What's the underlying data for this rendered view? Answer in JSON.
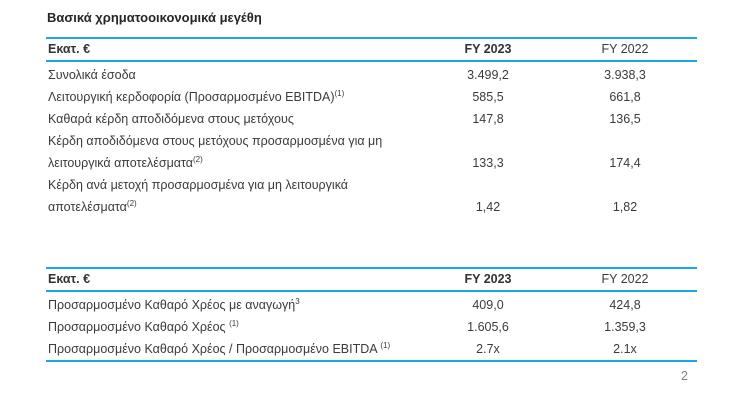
{
  "title": "Βασικά χρηματοοικονομικά μεγέθη",
  "page_number": "2",
  "colors": {
    "accent_line": "#1BA8E2",
    "text": "#3B3B3B",
    "page_number": "#808080",
    "background": "#FFFFFF"
  },
  "tables": [
    {
      "name": "key-financial-figures",
      "headers": [
        "Εκατ. €",
        "FY 2023",
        "FY 2022"
      ],
      "rows": [
        {
          "label_lines": [
            "Συνολικά έσοδα"
          ],
          "superscript": "",
          "fy2023": "3.499,2",
          "fy2022": "3.938,3"
        },
        {
          "label_lines": [
            "Λειτουργική κερδοφορία (Προσαρμοσμένο EBITDA)"
          ],
          "superscript": "(1)",
          "fy2023": "585,5",
          "fy2022": "661,8"
        },
        {
          "label_lines": [
            "Καθαρά κέρδη αποδιδόμενα στους μετόχους"
          ],
          "superscript": "",
          "fy2023": "147,8",
          "fy2022": "136,5"
        },
        {
          "label_lines": [
            "Κέρδη αποδιδόμενα στους μετόχους προσαρμοσμένα για μη",
            "λειτουργικά αποτελέσματα"
          ],
          "superscript": "(2)",
          "fy2023": "133,3",
          "fy2022": "174,4"
        },
        {
          "label_lines": [
            "Κέρδη ανά μετοχή προσαρμοσμένα για μη λειτουργικά",
            "αποτελέσματα"
          ],
          "superscript": "(2)",
          "fy2023": "1,42",
          "fy2022": "1,82"
        }
      ]
    },
    {
      "name": "net-debt-figures",
      "headers": [
        "Εκατ. €",
        "FY 2023",
        "FY 2022"
      ],
      "rows": [
        {
          "label_lines": [
            "Προσαρμοσμένο Καθαρό Χρέος με αναγωγή"
          ],
          "superscript": "3",
          "fy2023": "409,0",
          "fy2022": "424,8"
        },
        {
          "label_lines": [
            "Προσαρμοσμένο Καθαρό Χρέος "
          ],
          "superscript": "(1)",
          "fy2023": "1.605,6",
          "fy2022": "1.359,3"
        },
        {
          "label_lines": [
            "Προσαρμοσμένο Καθαρό Χρέος / Προσαρμοσμένο EBITDA "
          ],
          "superscript": "(1)",
          "fy2023": "2.7x",
          "fy2022": "2.1x"
        }
      ]
    }
  ]
}
